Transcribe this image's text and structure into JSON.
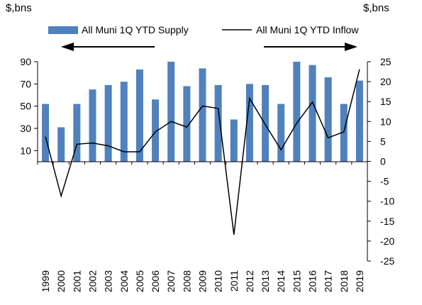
{
  "chart_data": {
    "type": "bar+line",
    "left_unit_label": "$,bns",
    "right_unit_label": "$,bns",
    "categories": [
      "1999",
      "2000",
      "2001",
      "2002",
      "2003",
      "2004",
      "2005",
      "2006",
      "2007",
      "2008",
      "2009",
      "2010",
      "2011",
      "2012",
      "2013",
      "2014",
      "2015",
      "2016",
      "2017",
      "2018",
      "2019"
    ],
    "series": [
      {
        "name": "All Muni 1Q YTD Supply",
        "kind": "bar",
        "axis": "left",
        "color": "#4f81bd",
        "values": [
          52,
          31,
          52,
          65,
          69,
          72,
          83,
          56,
          90,
          68,
          84,
          69,
          38,
          70,
          69,
          52,
          90,
          87,
          76,
          52,
          73
        ]
      },
      {
        "name": "All Muni 1Q YTD Inflow",
        "kind": "line",
        "axis": "right",
        "color": "#000000",
        "values": [
          6.2,
          -8.7,
          4.3,
          4.6,
          3.9,
          2.4,
          2.4,
          7.4,
          10.0,
          8.6,
          13.9,
          13.3,
          -18.4,
          15.8,
          9.2,
          2.9,
          9.6,
          14.9,
          5.9,
          7.4,
          23.1
        ]
      }
    ],
    "left_axis": {
      "ticks": [
        10,
        30,
        50,
        70,
        90
      ],
      "ylim": [
        0,
        90
      ]
    },
    "right_axis": {
      "ticks": [
        25,
        20,
        15,
        10,
        5,
        0,
        -5,
        -10,
        -15,
        -20,
        -25
      ],
      "ylim": [
        -25,
        25
      ]
    },
    "legend_position": "top",
    "left_arrow": "points left (left axis)",
    "right_arrow": "points right (right axis)",
    "grid": false
  }
}
